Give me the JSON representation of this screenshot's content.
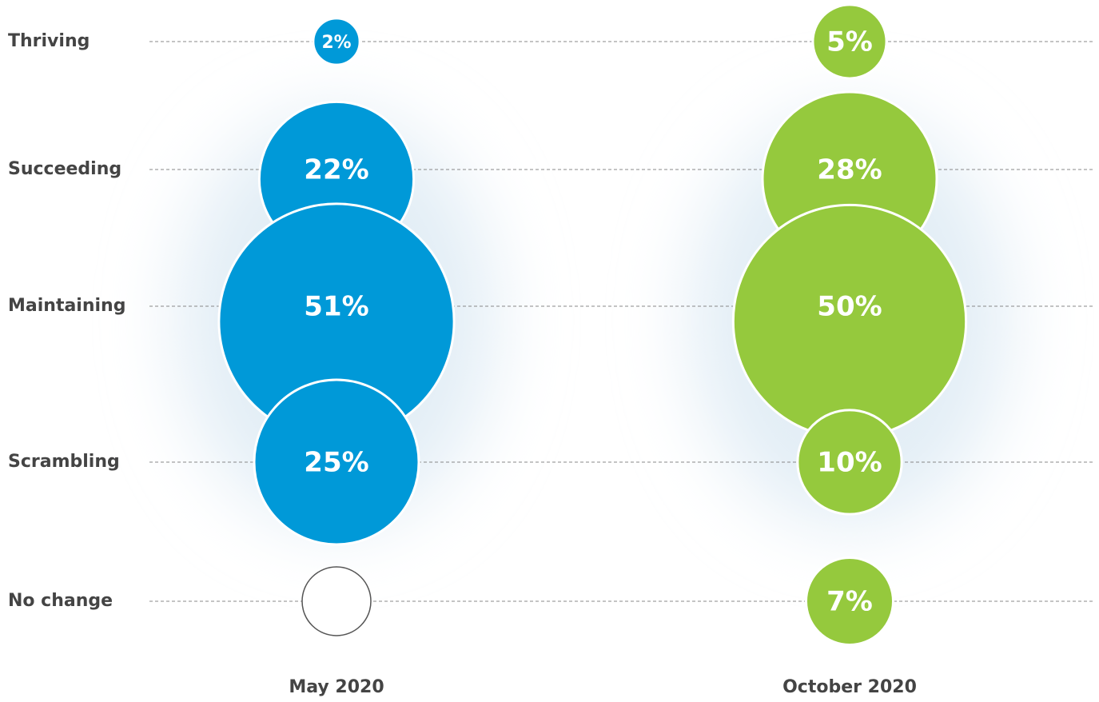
{
  "chart_data": {
    "type": "bubble",
    "categories": [
      "Thriving",
      "Succeeding",
      "Maintaining",
      "Scrambling",
      "No change"
    ],
    "series": [
      {
        "name": "May 2020",
        "color": "#0099d8",
        "values": [
          2,
          22,
          51,
          25,
          null
        ],
        "value_labels": [
          "2%",
          "22%",
          "51%",
          "25%",
          null
        ]
      },
      {
        "name": "October 2020",
        "color": "#95c93d",
        "values": [
          5,
          28,
          50,
          10,
          7
        ],
        "value_labels": [
          "5%",
          "28%",
          "50%",
          "10%",
          "7%"
        ]
      }
    ]
  }
}
